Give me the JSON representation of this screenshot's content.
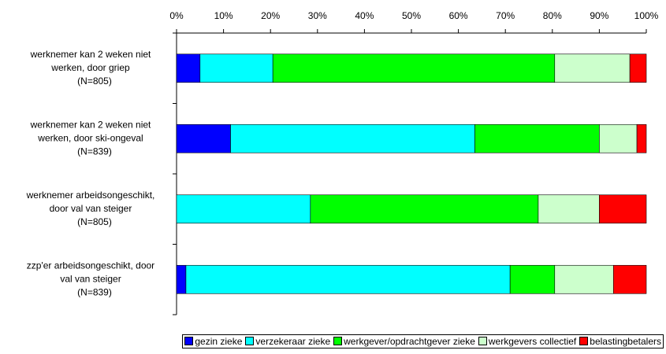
{
  "chart_data": {
    "type": "stacked-bar-horizontal",
    "categories": [
      [
        "werknemer kan 2 weken niet",
        "werken, door griep",
        "(N=805)"
      ],
      [
        "werknemer kan 2 weken niet",
        "werken, door ski-ongeval",
        "(N=839)"
      ],
      [
        "werknemer arbeidsongeschikt,",
        "door val van steiger",
        "(N=805)"
      ],
      [
        "zzp'er arbeidsongeschikt, door",
        "val van steiger",
        "(N=839)"
      ]
    ],
    "series": [
      {
        "name": "gezin zieke",
        "color": "#0000ff",
        "values": [
          5,
          11.5,
          0,
          2
        ]
      },
      {
        "name": "verzekeraar zieke",
        "color": "#00ffff",
        "values": [
          15.5,
          52,
          28.5,
          69
        ]
      },
      {
        "name": "werkgever/opdrachtgever zieke",
        "color": "#00ff00",
        "values": [
          60,
          26.5,
          48.5,
          9.5
        ]
      },
      {
        "name": "werkgevers collectief",
        "color": "#ccffcc",
        "values": [
          16,
          8,
          13,
          12.5
        ]
      },
      {
        "name": "belastingbetalers",
        "color": "#ff0000",
        "values": [
          3.5,
          2,
          10,
          7
        ]
      }
    ],
    "xlim": [
      0,
      100
    ],
    "xticks": [
      {
        "value": 0,
        "label": "0%"
      },
      {
        "value": 10,
        "label": "10%"
      },
      {
        "value": 20,
        "label": "20%"
      },
      {
        "value": 30,
        "label": "30%"
      },
      {
        "value": 40,
        "label": "40%"
      },
      {
        "value": 50,
        "label": "50%"
      },
      {
        "value": 60,
        "label": "60%"
      },
      {
        "value": 70,
        "label": "70%"
      },
      {
        "value": 80,
        "label": "80%"
      },
      {
        "value": 90,
        "label": "90%"
      },
      {
        "value": 100,
        "label": "100%"
      }
    ],
    "legend": "bottom-right"
  }
}
